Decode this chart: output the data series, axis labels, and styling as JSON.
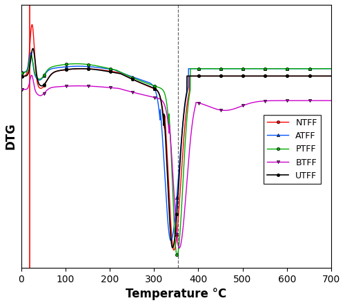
{
  "xlabel": "Temperature °C",
  "ylabel": "DTG",
  "xlim": [
    0,
    700
  ],
  "dashed_vline_x": 355,
  "red_vline_x": 20,
  "series": {
    "NTFF": {
      "color": "#ff0000",
      "marker": "o",
      "marker_size": 3,
      "linewidth": 1.0
    },
    "ATFF": {
      "color": "#0055ff",
      "marker": "^",
      "marker_size": 3,
      "linewidth": 1.0
    },
    "PTFF": {
      "color": "#00aa00",
      "marker": "o",
      "marker_size": 3,
      "linewidth": 1.0
    },
    "BTFF": {
      "color": "#cc00cc",
      "marker": "v",
      "marker_size": 3,
      "linewidth": 1.0
    },
    "UTFF": {
      "color": "#000000",
      "marker": "o",
      "marker_size": 3,
      "linewidth": 1.2
    }
  },
  "legend_loc": "center right",
  "tick_label_fontsize": 10,
  "axis_label_fontsize": 12,
  "background_color": "#ffffff"
}
